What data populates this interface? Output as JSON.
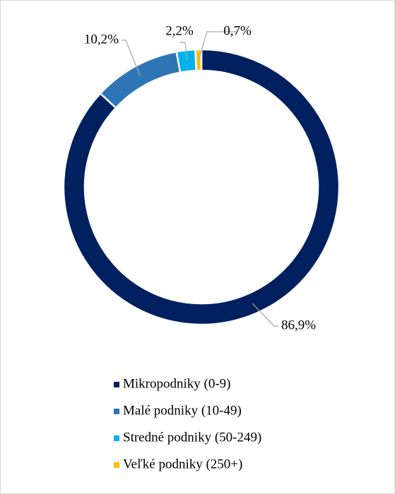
{
  "chart_data": {
    "type": "donut",
    "categories": [
      "Mikropodniky (0-9)",
      "Malé podniky (10-49)",
      "Stredné podniky (50-249)",
      "Veľké podniky (250+)"
    ],
    "values": [
      86.9,
      10.2,
      2.2,
      0.7
    ],
    "value_labels": [
      "86,9%",
      "10,2%",
      "2,2%",
      "0,7%"
    ],
    "colors": [
      "#002060",
      "#2e75b6",
      "#00b0f0",
      "#ffc000"
    ]
  }
}
